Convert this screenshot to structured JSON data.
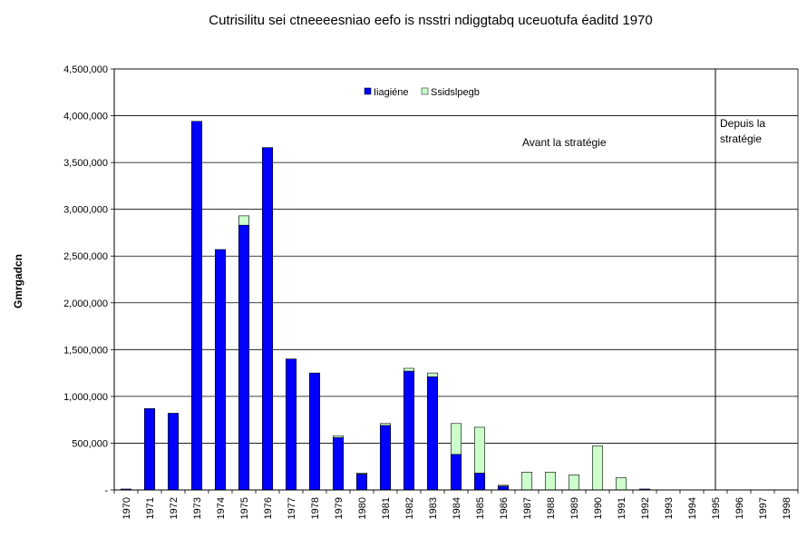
{
  "chart_data": {
    "type": "bar",
    "stacked": true,
    "title": "Cutrisilitu sei ctneeeesniao eefo is nsstri ndiggtabq uceuotufa éaditd 1970",
    "ylabel": "Gmrgadcn",
    "xlabel": "",
    "ylim": [
      0,
      4500000
    ],
    "ytick_step": 500000,
    "ytick_labels": [
      "-",
      "500,000",
      "1,000,000",
      "1,500,000",
      "2,000,000",
      "2,500,000",
      "3,000,000",
      "3,500,000",
      "4,000,000",
      "4,500,000"
    ],
    "grid": true,
    "legend_position": "top-center",
    "categories": [
      "1970",
      "1971",
      "1972",
      "1973",
      "1974",
      "1975",
      "1976",
      "1977",
      "1978",
      "1979",
      "1980",
      "1981",
      "1982",
      "1983",
      "1984",
      "1985",
      "1986",
      "1987",
      "1988",
      "1989",
      "1990",
      "1991",
      "1992",
      "1993",
      "1994",
      "1995",
      "1996",
      "1997",
      "1998"
    ],
    "series": [
      {
        "name": "Iiagiéne",
        "color": "#0000ff",
        "values": [
          10000,
          870000,
          820000,
          3940000,
          2570000,
          2830000,
          3660000,
          1400000,
          1250000,
          560000,
          170000,
          690000,
          1270000,
          1210000,
          380000,
          180000,
          40000,
          0,
          0,
          0,
          0,
          0,
          10000,
          0,
          0,
          0,
          0,
          0,
          0
        ]
      },
      {
        "name": "Ssidslpegb",
        "color": "#ccffcc",
        "values": [
          0,
          0,
          0,
          0,
          0,
          100000,
          0,
          0,
          0,
          20000,
          10000,
          20000,
          30000,
          40000,
          330000,
          490000,
          10000,
          190000,
          190000,
          160000,
          470000,
          130000,
          0,
          0,
          0,
          0,
          0,
          0,
          0
        ]
      }
    ],
    "annotations": [
      {
        "id": "before",
        "lines": [
          "Avant la stratégie"
        ]
      },
      {
        "id": "after",
        "lines": [
          "Depuis la",
          "stratégie"
        ]
      }
    ],
    "divider_after_category": "1995"
  }
}
